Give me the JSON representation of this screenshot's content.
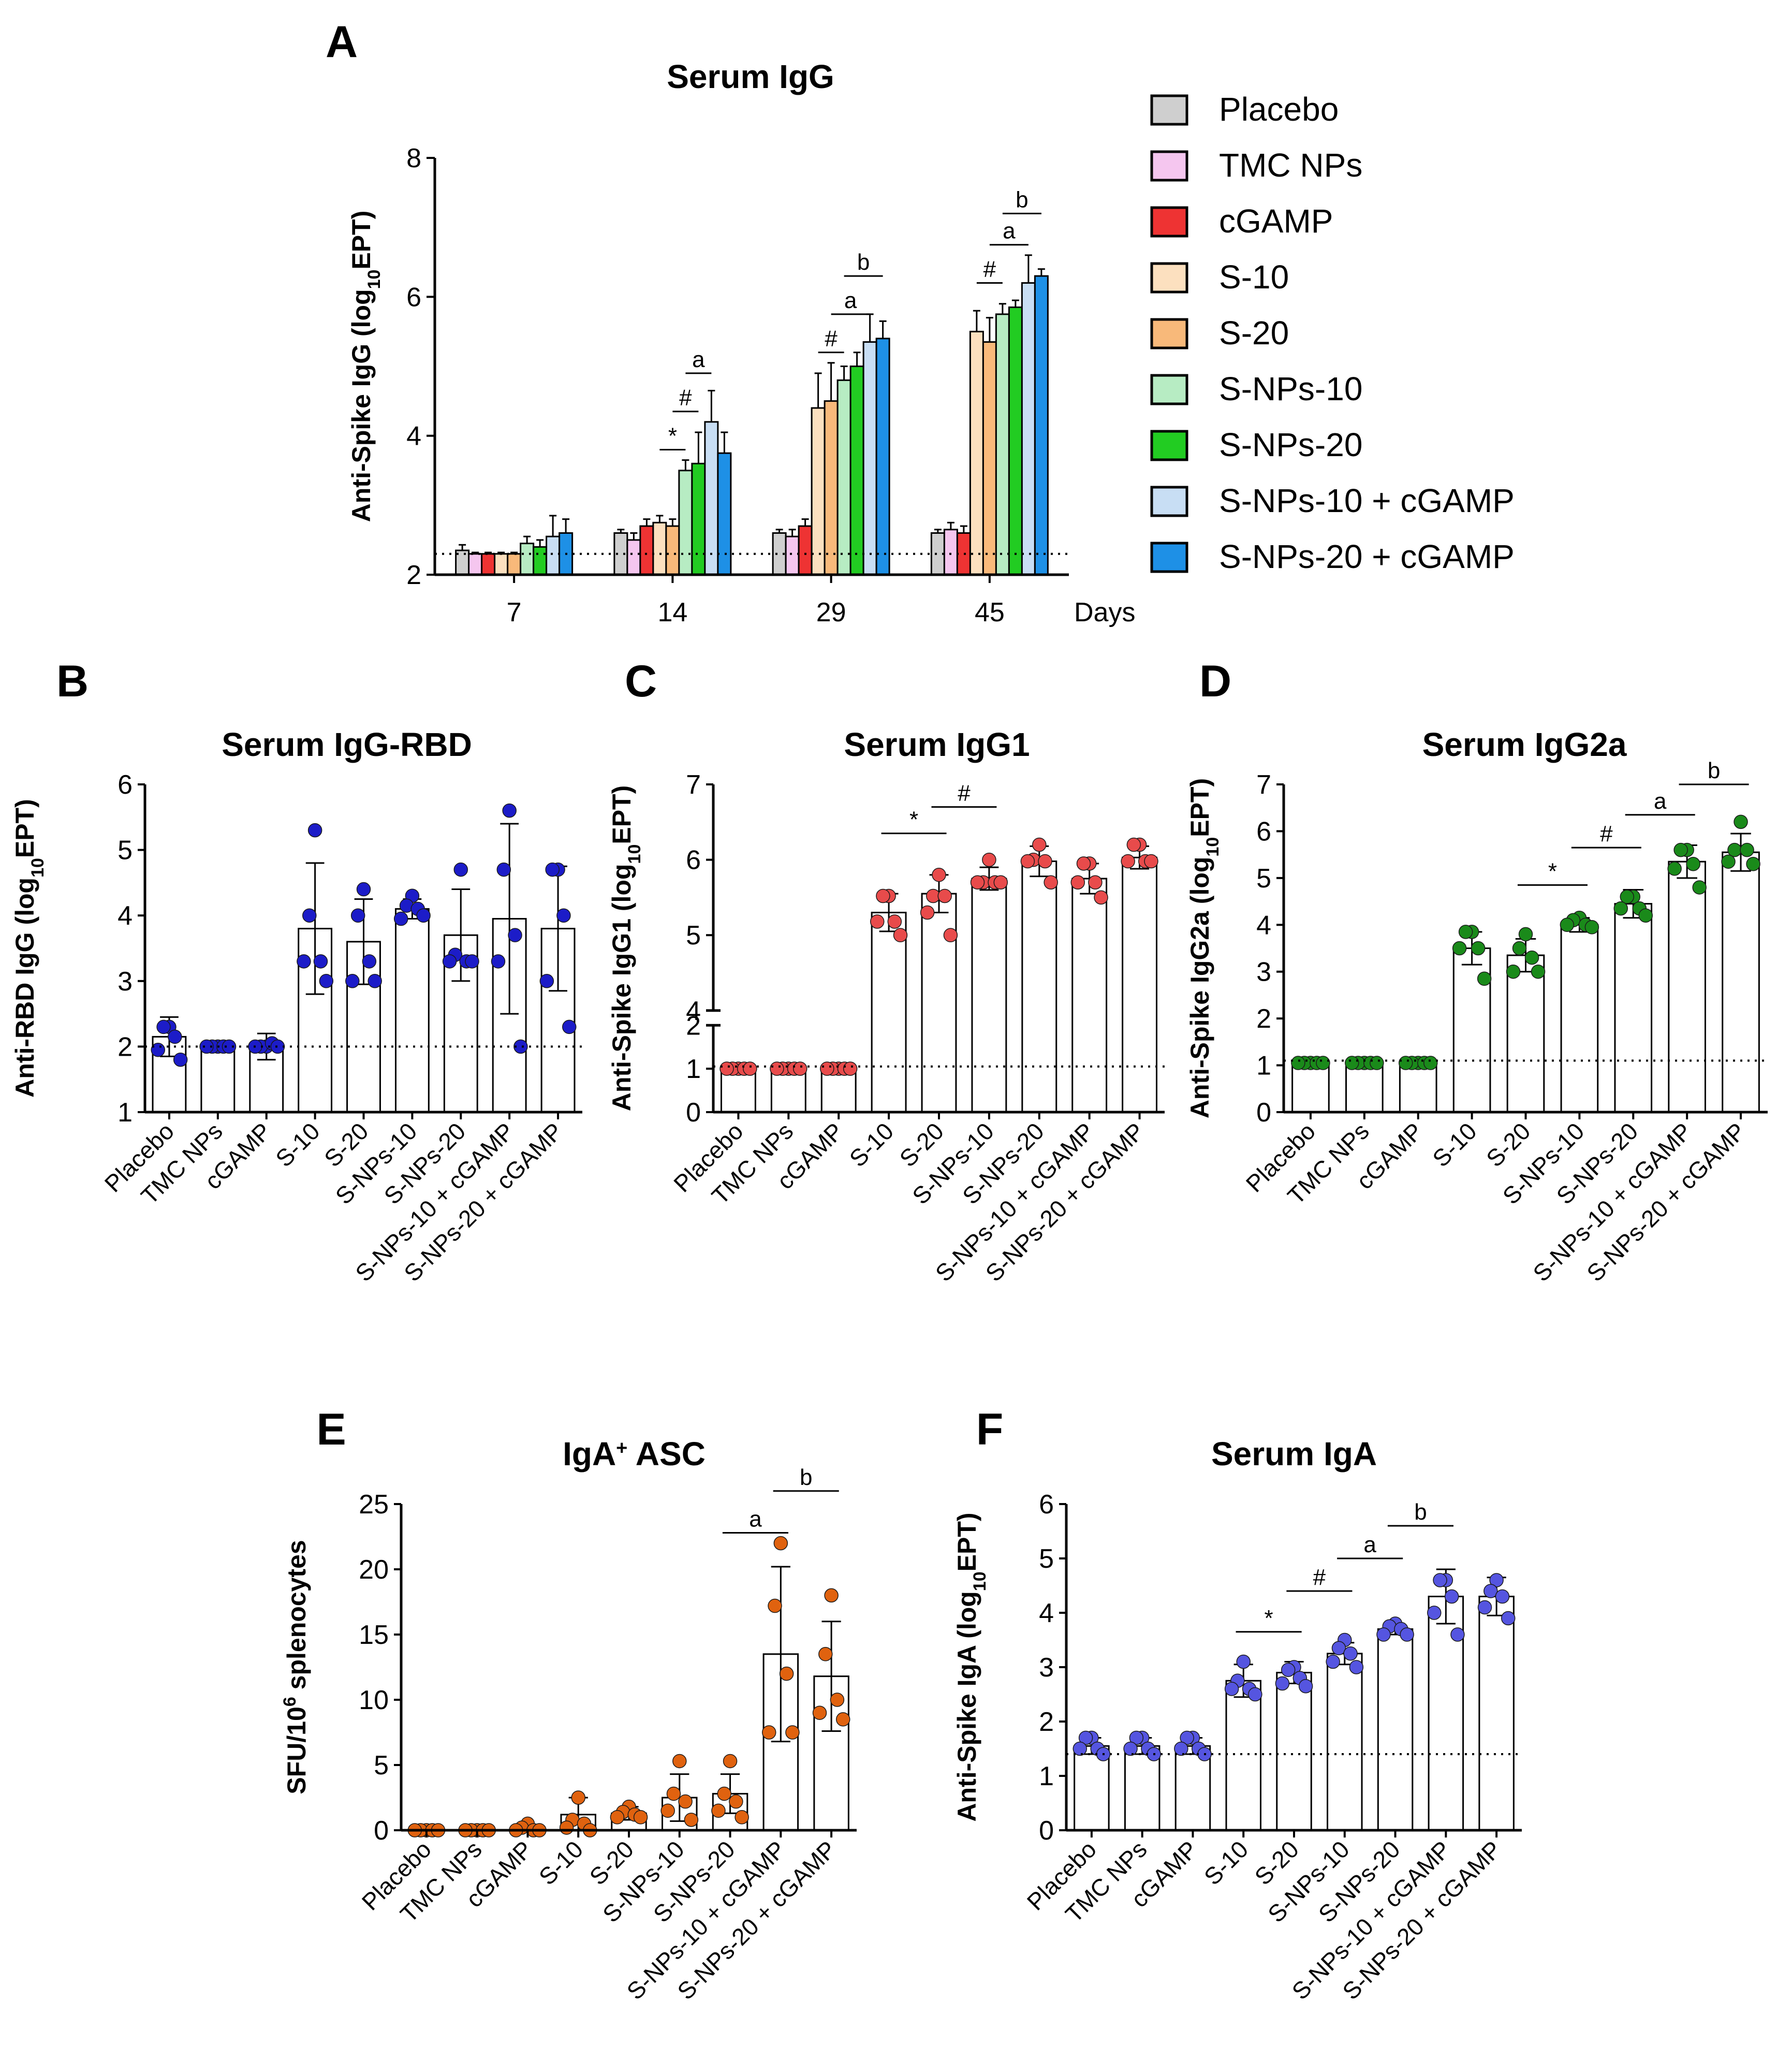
{
  "chart_data": [
    {
      "panel": "A",
      "type": "bar",
      "title": "Serum IgG",
      "ylabel_main": "Anti-Spike IgG (log",
      "ylabel_sub": "10",
      "ylabel_tail": "EPT)",
      "xlabel": "Days",
      "ylim": [
        2,
        8
      ],
      "yticks": [
        "2",
        "4",
        "6",
        "8"
      ],
      "baseline": 2.3,
      "groups": [
        "7",
        "14",
        "29",
        "45"
      ],
      "series": [
        {
          "name": "Placebo",
          "color": "#cfcfcf",
          "values": [
            2.35,
            2.6,
            2.6,
            2.6
          ],
          "errors": [
            0.08,
            0.05,
            0.05,
            0.05
          ]
        },
        {
          "name": "TMC NPs",
          "color": "#f5c6ef",
          "values": [
            2.3,
            2.5,
            2.55,
            2.65
          ],
          "errors": [
            0.02,
            0.1,
            0.1,
            0.1
          ]
        },
        {
          "name": "cGAMP",
          "color": "#ee3333",
          "values": [
            2.3,
            2.7,
            2.7,
            2.6
          ],
          "errors": [
            0.02,
            0.1,
            0.1,
            0.1
          ]
        },
        {
          "name": "S-10",
          "color": "#fce0bf",
          "values": [
            2.3,
            2.75,
            4.4,
            5.5
          ],
          "errors": [
            0.02,
            0.1,
            0.5,
            0.3
          ]
        },
        {
          "name": "S-20",
          "color": "#f8b97a",
          "values": [
            2.3,
            2.7,
            4.5,
            5.35
          ],
          "errors": [
            0.02,
            0.1,
            0.55,
            0.35
          ]
        },
        {
          "name": "S-NPs-10",
          "color": "#b7ecc3",
          "values": [
            2.45,
            3.5,
            4.8,
            5.75
          ],
          "errors": [
            0.1,
            0.15,
            0.2,
            0.15
          ]
        },
        {
          "name": "S-NPs-20",
          "color": "#22cc22",
          "values": [
            2.4,
            3.6,
            5.0,
            5.85
          ],
          "errors": [
            0.1,
            0.45,
            0.2,
            0.1
          ]
        },
        {
          "name": "S-NPs-10 + cGAMP",
          "color": "#c8def4",
          "values": [
            2.55,
            4.2,
            5.35,
            6.2
          ],
          "errors": [
            0.3,
            0.45,
            0.4,
            0.4
          ]
        },
        {
          "name": "S-NPs-20 + cGAMP",
          "color": "#1e90e6",
          "values": [
            2.6,
            3.75,
            5.4,
            6.3
          ],
          "errors": [
            0.2,
            0.3,
            0.25,
            0.1
          ]
        }
      ],
      "annotations": [
        {
          "label": "*",
          "group": 1,
          "from": 3,
          "to": 5,
          "y": 3.8
        },
        {
          "label": "#",
          "group": 1,
          "from": 4,
          "to": 6,
          "y": 4.35
        },
        {
          "label": "a",
          "group": 1,
          "from": 5,
          "to": 7,
          "y": 4.9
        },
        {
          "label": "#",
          "group": 2,
          "from": 3,
          "to": 5,
          "y": 5.2
        },
        {
          "label": "a",
          "group": 2,
          "from": 4,
          "to": 7,
          "y": 5.75
        },
        {
          "label": "b",
          "group": 2,
          "from": 5,
          "to": 8,
          "y": 6.3
        },
        {
          "label": "#",
          "group": 3,
          "from": 3,
          "to": 5,
          "y": 6.2
        },
        {
          "label": "a",
          "group": 3,
          "from": 4,
          "to": 7,
          "y": 6.75
        },
        {
          "label": "b",
          "group": 3,
          "from": 5,
          "to": 8,
          "y": 7.2
        }
      ]
    },
    {
      "panel": "B",
      "type": "bar",
      "title": "Serum IgG-RBD",
      "ylabel_main": "Anti-RBD IgG (log",
      "ylabel_sub": "10",
      "ylabel_tail": "EPT)",
      "dot_color": "#1c1cc8",
      "ylim": [
        1,
        6
      ],
      "yticks": [
        "1",
        "2",
        "3",
        "4",
        "5",
        "6"
      ],
      "baseline": 2.0,
      "categories": [
        "Placebo",
        "TMC NPs",
        "cGAMP",
        "S-10",
        "S-20",
        "S-NPs-10",
        "S-NPs-20",
        "S-NPs-10 + cGAMP",
        "S-NPs-20 + cGAMP"
      ],
      "values": [
        2.15,
        2.0,
        2.0,
        3.8,
        3.6,
        4.1,
        3.7,
        3.95,
        3.8
      ],
      "errors": [
        0.3,
        0.02,
        0.2,
        1.0,
        0.65,
        0.15,
        0.7,
        1.45,
        0.95
      ],
      "points": [
        [
          2.3,
          2.3,
          2.15,
          1.95,
          1.8
        ],
        [
          2.0,
          2.0,
          2.0,
          2.0,
          2.0
        ],
        [
          2.0,
          2.0,
          2.05,
          2.0,
          2.0
        ],
        [
          5.3,
          4.0,
          3.3,
          3.3,
          3.0
        ],
        [
          4.4,
          4.0,
          3.3,
          3.0,
          3.0
        ],
        [
          4.3,
          4.15,
          4.1,
          3.95,
          4.0
        ],
        [
          4.7,
          3.4,
          3.3,
          3.3,
          3.3
        ],
        [
          5.6,
          4.7,
          3.7,
          3.3,
          2.0
        ],
        [
          4.7,
          4.7,
          4.0,
          3.0,
          2.3
        ]
      ],
      "annotations": []
    },
    {
      "panel": "C",
      "type": "bar",
      "title": "Serum IgG1",
      "ylabel_main": "Anti-Spike IgG1 (log",
      "ylabel_sub": "10",
      "ylabel_tail": "EPT)",
      "dot_color": "#e84b4b",
      "ylim": [
        0,
        7
      ],
      "yticks": [
        "0",
        "1",
        "2",
        "4",
        "5",
        "6",
        "7"
      ],
      "axis_break": [
        2,
        4
      ],
      "baseline": 1.05,
      "categories": [
        "Placebo",
        "TMC NPs",
        "cGAMP",
        "S-10",
        "S-20",
        "S-NPs-10",
        "S-NPs-20",
        "S-NPs-10 + cGAMP",
        "S-NPs-20 + cGAMP"
      ],
      "values": [
        1.0,
        1.0,
        1.0,
        5.3,
        5.55,
        5.75,
        5.98,
        5.75,
        6.03
      ],
      "errors": [
        0.02,
        0.02,
        0.02,
        0.25,
        0.25,
        0.15,
        0.2,
        0.2,
        0.15
      ],
      "points": [
        [
          1.0,
          1.0,
          1.0,
          1.0,
          1.0
        ],
        [
          1.0,
          1.0,
          1.0,
          1.0,
          1.0
        ],
        [
          1.0,
          1.0,
          1.0,
          1.0,
          1.0
        ],
        [
          5.52,
          5.52,
          5.18,
          5.18,
          5.0
        ],
        [
          5.8,
          5.52,
          5.52,
          5.3,
          5.0
        ],
        [
          6.0,
          5.7,
          5.7,
          5.7,
          5.7
        ],
        [
          6.2,
          6.0,
          5.98,
          5.98,
          5.7
        ],
        [
          5.95,
          5.95,
          5.7,
          5.7,
          5.5
        ],
        [
          6.2,
          6.2,
          5.98,
          5.98,
          5.98
        ]
      ],
      "annotations": [
        {
          "label": "*",
          "from": 3,
          "to": 5,
          "y": 6.35
        },
        {
          "label": "#",
          "from": 4,
          "to": 6,
          "y": 6.7
        }
      ]
    },
    {
      "panel": "D",
      "type": "bar",
      "title": "Serum IgG2a",
      "ylabel_main": "Anti-Spike IgG2a (log",
      "ylabel_sub": "10",
      "ylabel_tail": "EPT)",
      "dot_color": "#1a8a1a",
      "ylim": [
        0,
        7
      ],
      "yticks": [
        "0",
        "1",
        "2",
        "3",
        "4",
        "5",
        "6",
        "7"
      ],
      "baseline": 1.1,
      "categories": [
        "Placebo",
        "TMC NPs",
        "cGAMP",
        "S-10",
        "S-20",
        "S-NPs-10",
        "S-NPs-20",
        "S-NPs-10 + cGAMP",
        "S-NPs-20 + cGAMP"
      ],
      "values": [
        1.05,
        1.05,
        1.05,
        3.5,
        3.35,
        4.0,
        4.45,
        5.35,
        5.55
      ],
      "errors": [
        0.02,
        0.02,
        0.02,
        0.35,
        0.35,
        0.15,
        0.3,
        0.35,
        0.4
      ],
      "points": [
        [
          1.05,
          1.05,
          1.05,
          1.05,
          1.05
        ],
        [
          1.05,
          1.05,
          1.05,
          1.05,
          1.05
        ],
        [
          1.05,
          1.05,
          1.05,
          1.05,
          1.05
        ],
        [
          3.85,
          3.85,
          3.5,
          3.5,
          2.85
        ],
        [
          3.8,
          3.5,
          3.3,
          3.0,
          3.0
        ],
        [
          4.15,
          4.1,
          4.0,
          4.0,
          3.95
        ],
        [
          4.6,
          4.6,
          4.35,
          4.35,
          4.2
        ],
        [
          5.6,
          5.6,
          5.3,
          5.2,
          4.8
        ],
        [
          6.2,
          5.6,
          5.6,
          5.35,
          5.3
        ]
      ],
      "annotations": [
        {
          "label": "*",
          "from": 4,
          "to": 6,
          "y": 4.85
        },
        {
          "label": "#",
          "from": 5,
          "to": 7,
          "y": 5.65
        },
        {
          "label": "a",
          "from": 6,
          "to": 8,
          "y": 6.35
        },
        {
          "label": "b",
          "from": 7,
          "to": 9,
          "y": 7.0
        }
      ]
    },
    {
      "panel": "E",
      "type": "bar",
      "title_main": "IgA",
      "title_sup": "+",
      "title_tail": " ASC",
      "ylabel_main": "SFU/10",
      "ylabel_sup": "6",
      "ylabel_tail": " splenocytes",
      "dot_color": "#e0620f",
      "ylim": [
        0,
        25
      ],
      "yticks": [
        "0",
        "5",
        "10",
        "15",
        "20",
        "25"
      ],
      "categories": [
        "Placebo",
        "TMC NPs",
        "cGAMP",
        "S-10",
        "S-20",
        "S-NPs-10",
        "S-NPs-20",
        "S-NPs-10 + cGAMP",
        "S-NPs-20 + cGAMP"
      ],
      "values": [
        0.1,
        0.1,
        0.2,
        1.2,
        1.3,
        2.5,
        2.8,
        13.5,
        11.8
      ],
      "errors": [
        0.05,
        0.05,
        0.2,
        1.3,
        0.5,
        1.8,
        1.5,
        6.7,
        4.2
      ],
      "points": [
        [
          0,
          0,
          0,
          0,
          0
        ],
        [
          0,
          0,
          0,
          0,
          0
        ],
        [
          0.5,
          0.2,
          0,
          0,
          0
        ],
        [
          2.5,
          0.8,
          0.5,
          0.2,
          0
        ],
        [
          1.8,
          1.4,
          1.2,
          1.0,
          1.0
        ],
        [
          5.3,
          2.8,
          2.2,
          1.5,
          0.8
        ],
        [
          5.3,
          2.8,
          2.2,
          1.5,
          1.0
        ],
        [
          22.0,
          17.2,
          12.0,
          7.5,
          7.5
        ],
        [
          18.0,
          13.5,
          10.0,
          9.0,
          8.5
        ]
      ],
      "annotations": [
        {
          "label": "a",
          "from": 6,
          "to": 8,
          "y": 22.8
        },
        {
          "label": "b",
          "from": 7,
          "to": 9,
          "y": 26.0
        }
      ]
    },
    {
      "panel": "F",
      "type": "bar",
      "title": "Serum IgA",
      "ylabel_main": "Anti-Spike IgA (log",
      "ylabel_sub": "10",
      "ylabel_tail": "EPT)",
      "dot_color": "#5555e0",
      "ylim": [
        0,
        6
      ],
      "yticks": [
        "0",
        "1",
        "2",
        "3",
        "4",
        "5",
        "6"
      ],
      "baseline": 1.4,
      "categories": [
        "Placebo",
        "TMC NPs",
        "cGAMP",
        "S-10",
        "S-20",
        "S-NPs-10",
        "S-NPs-20",
        "S-NPs-10 + cGAMP",
        "S-NPs-20 + cGAMP"
      ],
      "values": [
        1.55,
        1.55,
        1.55,
        2.75,
        2.9,
        3.25,
        3.7,
        4.3,
        4.3
      ],
      "errors": [
        0.15,
        0.15,
        0.15,
        0.3,
        0.2,
        0.2,
        0.1,
        0.5,
        0.35
      ],
      "points": [
        [
          1.7,
          1.7,
          1.5,
          1.5,
          1.4
        ],
        [
          1.7,
          1.7,
          1.5,
          1.5,
          1.4
        ],
        [
          1.7,
          1.7,
          1.5,
          1.5,
          1.4
        ],
        [
          3.1,
          2.75,
          2.6,
          2.6,
          2.5
        ],
        [
          3.0,
          2.95,
          2.8,
          2.7,
          2.65
        ],
        [
          3.5,
          3.35,
          3.25,
          3.1,
          3.0
        ],
        [
          3.8,
          3.75,
          3.7,
          3.6,
          3.6
        ],
        [
          4.6,
          4.6,
          4.3,
          4.0,
          3.6
        ],
        [
          4.6,
          4.4,
          4.3,
          4.1,
          3.9
        ]
      ],
      "annotations": [
        {
          "label": "*",
          "from": 3,
          "to": 5,
          "y": 3.65
        },
        {
          "label": "#",
          "from": 4,
          "to": 6,
          "y": 4.4
        },
        {
          "label": "a",
          "from": 5,
          "to": 7,
          "y": 5.0
        },
        {
          "label": "b",
          "from": 6,
          "to": 8,
          "y": 5.6
        }
      ]
    }
  ]
}
